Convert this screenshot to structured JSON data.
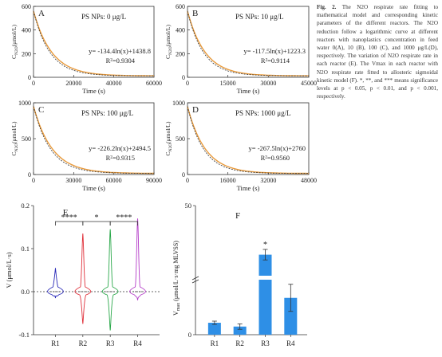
{
  "caption": {
    "label": "Fig. 2.",
    "text": "The N2O respirate rate fitting to mathematical model and corresponding kinetic parameters of the different reactors. The N2O reduction follow a logarithmic curve at different reactors with nanoplastics concentration in feed water 0(A), 10 (B), 100 (C), and 1000 μg/L(D), respectively. The variation of N2O respirate rate in each reactor (E). The Vmax in each reactor with N2O respirate rate fitted to allosteric sigmoidal kinetic model (F). *, **, and *** means significance levels at p < 0.05, p < 0.01, and p < 0.001, respectively."
  },
  "chart_data": [
    {
      "type": "line",
      "panel": "A",
      "title": "PS NPs: 0 μg/L",
      "xlabel": "Time (s)",
      "ylabel": "C_N2O(μmol/L)",
      "xlim": [
        0,
        60000
      ],
      "ylim": [
        0,
        600
      ],
      "xticks": [
        "0",
        "20000",
        "40000",
        "60000"
      ],
      "yticks": [
        "0",
        "200",
        "400",
        "600"
      ],
      "equation": "y= -134.4ln(x)+1438.8",
      "r2": "R²=0.9304",
      "C0": 560,
      "Cmin": 12,
      "tau": 9000
    },
    {
      "type": "line",
      "panel": "B",
      "title": "PS NPs: 10 μg/L",
      "xlabel": "Time (s)",
      "ylabel": "C_N2O(μmol/L)",
      "xlim": [
        0,
        45000
      ],
      "ylim": [
        0,
        600
      ],
      "xticks": [
        "0",
        "15000",
        "30000",
        "45000"
      ],
      "yticks": [
        "0",
        "200",
        "400",
        "600"
      ],
      "equation": "y= -117.5ln(x)+1223.3",
      "r2": "R²=0.9114",
      "C0": 560,
      "Cmin": 12,
      "tau": 6500
    },
    {
      "type": "line",
      "panel": "C",
      "title": "PS NPs: 100 μg/L",
      "xlabel": "Time (s)",
      "ylabel": "C_N2O(μmol/L)",
      "xlim": [
        0,
        90000
      ],
      "ylim": [
        0,
        1000
      ],
      "xticks": [
        "0",
        "30000",
        "60000",
        "90000"
      ],
      "yticks": [
        "0",
        "500",
        "1000"
      ],
      "equation": "y= -226.2ln(x)+2494.5",
      "r2": "R²=0.9315",
      "C0": 950,
      "Cmin": 15,
      "tau": 14000
    },
    {
      "type": "line",
      "panel": "D",
      "title": "PS NPs: 1000 μg/L",
      "xlabel": "Time (s)",
      "ylabel": "C_N2O(μmol/L)",
      "xlim": [
        0,
        48000
      ],
      "ylim": [
        0,
        1000
      ],
      "xticks": [
        "0",
        "16000",
        "32000",
        "48000"
      ],
      "yticks": [
        "0",
        "500",
        "1000"
      ],
      "equation": "y= -267.5ln(x)+2760",
      "r2": "R²=0.9560",
      "C0": 950,
      "Cmin": 15,
      "tau": 7000
    },
    {
      "type": "violin",
      "panel": "E",
      "ylabel": "V (μmol/L·s)",
      "ylim": [
        -0.1,
        0.2
      ],
      "yticks": [
        "-0.1",
        "0.0",
        "0.1",
        "0.2"
      ],
      "categories": [
        "R1",
        "R2",
        "R3",
        "R4"
      ],
      "colors": [
        "#2a2ab8",
        "#e0303a",
        "#2aa84a",
        "#b43cc8"
      ],
      "ranges": [
        [
          -0.015,
          0.055
        ],
        [
          -0.075,
          0.135
        ],
        [
          -0.09,
          0.145
        ],
        [
          -0.02,
          0.17
        ]
      ],
      "significance": [
        {
          "from": "R1",
          "to": "R2",
          "label": "****"
        },
        {
          "from": "R2",
          "to": "R3",
          "label": "*"
        },
        {
          "from": "R3",
          "to": "R4",
          "label": "****"
        }
      ]
    },
    {
      "type": "bar",
      "panel": "F",
      "ylabel": "V_max (μmol/L·s·mg MLVSS)",
      "ylim": [
        0,
        50
      ],
      "y_break": true,
      "yticks": [
        "0",
        "50"
      ],
      "categories": [
        "R1",
        "R2",
        "R3",
        "R4"
      ],
      "values": [
        2.2,
        1.5,
        36,
        6.8
      ],
      "errors": [
        0.3,
        0.5,
        1.5,
        2.5
      ],
      "annotations": [
        {
          "category": "R3",
          "label": "*"
        }
      ],
      "bar_color": "#2e8fe6"
    }
  ]
}
